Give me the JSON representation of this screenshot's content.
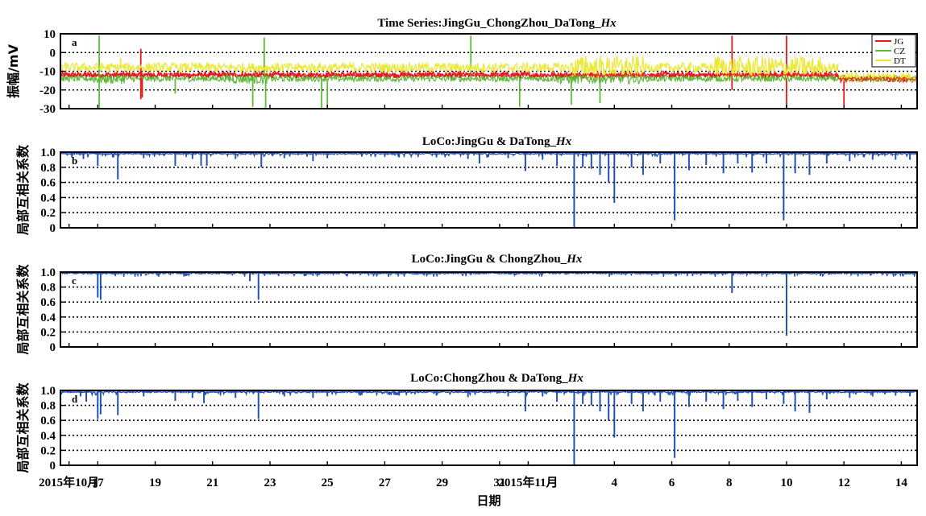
{
  "x_axis": {
    "xlabel": "日期",
    "ticks": [
      {
        "day": 16,
        "label": "2015年10月"
      },
      {
        "day": 17,
        "label": "17"
      },
      {
        "day": 19,
        "label": "19"
      },
      {
        "day": 21,
        "label": "21"
      },
      {
        "day": 23,
        "label": "23"
      },
      {
        "day": 25,
        "label": "25"
      },
      {
        "day": 27,
        "label": "27"
      },
      {
        "day": 29,
        "label": "29"
      },
      {
        "day": 31,
        "label": "31"
      },
      {
        "day": 32,
        "label": "2015年11月"
      },
      {
        "day": 35,
        "label": "4"
      },
      {
        "day": 37,
        "label": "6"
      },
      {
        "day": 39,
        "label": "8"
      },
      {
        "day": 41,
        "label": "10"
      },
      {
        "day": 43,
        "label": "12"
      },
      {
        "day": 45,
        "label": "14"
      }
    ],
    "range": [
      15.7,
      45.55
    ]
  },
  "chart_data": [
    {
      "type": "line",
      "panel_letter": "a",
      "title": "Time Series:JingGu_ChongZhou_DaTong_",
      "title_suffix": "Hx",
      "ylabel": "振幅/mV",
      "ylim": [
        -30,
        10
      ],
      "yticks": [
        10,
        0,
        -10,
        -20,
        -30
      ],
      "grid_values": [
        0,
        -10,
        -20
      ],
      "legend_placement": "top-right",
      "series": [
        {
          "name": "JG",
          "color": "#e8191e",
          "base": -12,
          "segments": [
            {
              "x": [
                15.7,
                42.8
              ],
              "y": -12
            },
            {
              "x": [
                42.8,
                45.55
              ],
              "y": -14
            }
          ],
          "spikes": [
            {
              "x": 18.5,
              "y": 2
            },
            {
              "x": 18.5,
              "y": -25
            },
            {
              "x": 18.55,
              "y": -24
            },
            {
              "x": 39.1,
              "y": 9
            },
            {
              "x": 39.1,
              "y": -20
            },
            {
              "x": 41.0,
              "y": 9
            },
            {
              "x": 41.0,
              "y": -30
            },
            {
              "x": 43.0,
              "y": -28
            }
          ]
        },
        {
          "name": "CZ",
          "color": "#5cbd3b",
          "base": -14,
          "segments": [
            {
              "x": [
                15.7,
                45.55
              ],
              "y": -14
            }
          ],
          "spikes": [
            {
              "x": 17.05,
              "y": 9
            },
            {
              "x": 17.05,
              "y": -30
            },
            {
              "x": 22.4,
              "y": -29
            },
            {
              "x": 22.8,
              "y": 8
            },
            {
              "x": 22.85,
              "y": -30
            },
            {
              "x": 24.8,
              "y": -30
            },
            {
              "x": 25.0,
              "y": -30
            },
            {
              "x": 30.0,
              "y": 9
            },
            {
              "x": 31.7,
              "y": -29
            },
            {
              "x": 33.5,
              "y": -28
            },
            {
              "x": 34.5,
              "y": -27
            },
            {
              "x": 19.7,
              "y": -22
            }
          ]
        },
        {
          "name": "DT",
          "color": "#ebe836",
          "base": -8,
          "segments": [
            {
              "x": [
                15.7,
                42.8
              ],
              "y": -8
            },
            {
              "x": [
                42.8,
                45.55
              ],
              "y": -13
            }
          ],
          "spikes": [
            {
              "x": 17.8,
              "y": -3
            },
            {
              "x": 34.0,
              "y": -2
            },
            {
              "x": 35.0,
              "y": -3
            },
            {
              "x": 38.6,
              "y": -2
            },
            {
              "x": 40.5,
              "y": -3
            },
            {
              "x": 41.6,
              "y": -3
            }
          ]
        }
      ]
    },
    {
      "type": "line",
      "panel_letter": "b",
      "title": "LoCo:JingGu & DaTong_",
      "title_suffix": "Hx",
      "ylabel": "局部互相关系数",
      "ylim": [
        0,
        1.0
      ],
      "yticks": [
        1.0,
        0.8,
        0.6,
        0.4,
        0.2,
        0
      ],
      "grid_values": [
        0.8,
        0.6,
        0.4,
        0.2
      ],
      "color": "#2350b5",
      "baseline": 0.99,
      "dips": [
        {
          "x": 16.1,
          "y": 0.93
        },
        {
          "x": 16.5,
          "y": 0.91
        },
        {
          "x": 17.0,
          "y": 0.82
        },
        {
          "x": 17.7,
          "y": 0.64
        },
        {
          "x": 18.6,
          "y": 0.92
        },
        {
          "x": 19.7,
          "y": 0.82
        },
        {
          "x": 20.3,
          "y": 0.91
        },
        {
          "x": 20.6,
          "y": 0.82
        },
        {
          "x": 20.8,
          "y": 0.82
        },
        {
          "x": 21.8,
          "y": 0.91
        },
        {
          "x": 22.7,
          "y": 0.8
        },
        {
          "x": 23.5,
          "y": 0.92
        },
        {
          "x": 24.5,
          "y": 0.88
        },
        {
          "x": 25.0,
          "y": 0.92
        },
        {
          "x": 26.2,
          "y": 0.94
        },
        {
          "x": 27.5,
          "y": 0.93
        },
        {
          "x": 28.8,
          "y": 0.93
        },
        {
          "x": 29.9,
          "y": 0.91
        },
        {
          "x": 30.3,
          "y": 0.85
        },
        {
          "x": 31.3,
          "y": 0.92
        },
        {
          "x": 31.9,
          "y": 0.75
        },
        {
          "x": 32.5,
          "y": 0.9
        },
        {
          "x": 33.0,
          "y": 0.82
        },
        {
          "x": 33.6,
          "y": 0.0
        },
        {
          "x": 33.9,
          "y": 0.8
        },
        {
          "x": 34.2,
          "y": 0.78
        },
        {
          "x": 34.5,
          "y": 0.7
        },
        {
          "x": 34.8,
          "y": 0.6
        },
        {
          "x": 35.0,
          "y": 0.33
        },
        {
          "x": 35.6,
          "y": 0.8
        },
        {
          "x": 36.0,
          "y": 0.7
        },
        {
          "x": 36.6,
          "y": 0.85
        },
        {
          "x": 37.1,
          "y": 0.1
        },
        {
          "x": 37.6,
          "y": 0.76
        },
        {
          "x": 38.2,
          "y": 0.83
        },
        {
          "x": 38.8,
          "y": 0.72
        },
        {
          "x": 39.3,
          "y": 0.85
        },
        {
          "x": 39.8,
          "y": 0.73
        },
        {
          "x": 40.3,
          "y": 0.85
        },
        {
          "x": 40.9,
          "y": 0.1
        },
        {
          "x": 41.3,
          "y": 0.72
        },
        {
          "x": 41.8,
          "y": 0.7
        },
        {
          "x": 42.4,
          "y": 0.85
        },
        {
          "x": 43.2,
          "y": 0.88
        },
        {
          "x": 44.0,
          "y": 0.9
        },
        {
          "x": 44.8,
          "y": 0.9
        },
        {
          "x": 45.3,
          "y": 0.9
        }
      ]
    },
    {
      "type": "line",
      "panel_letter": "c",
      "title": "LoCo:JingGu & ChongZhou_",
      "title_suffix": "Hx",
      "ylabel": "局部互相关系数",
      "ylim": [
        0,
        1.0
      ],
      "yticks": [
        1.0,
        0.8,
        0.6,
        0.4,
        0.2,
        0
      ],
      "grid_values": [
        0.8,
        0.6,
        0.4,
        0.2
      ],
      "color": "#2350b5",
      "baseline": 0.995,
      "dips": [
        {
          "x": 17.0,
          "y": 0.66
        },
        {
          "x": 17.1,
          "y": 0.63
        },
        {
          "x": 22.3,
          "y": 0.88
        },
        {
          "x": 22.6,
          "y": 0.63
        },
        {
          "x": 24.5,
          "y": 0.95
        },
        {
          "x": 30.0,
          "y": 0.96
        },
        {
          "x": 34.9,
          "y": 0.96
        },
        {
          "x": 39.1,
          "y": 0.72
        },
        {
          "x": 41.0,
          "y": 0.15
        },
        {
          "x": 42.5,
          "y": 0.97
        }
      ]
    },
    {
      "type": "line",
      "panel_letter": "d",
      "title": "LoCo:ChongZhou & DaTong_",
      "title_suffix": "Hx",
      "ylabel": "局部互相关系数",
      "ylim": [
        0,
        1.0
      ],
      "yticks": [
        1.0,
        0.8,
        0.6,
        0.4,
        0.2,
        0
      ],
      "grid_values": [
        0.8,
        0.6,
        0.4,
        0.2
      ],
      "color": "#2350b5",
      "baseline": 0.99,
      "dips": [
        {
          "x": 16.4,
          "y": 0.92
        },
        {
          "x": 16.6,
          "y": 0.85
        },
        {
          "x": 17.0,
          "y": 0.62
        },
        {
          "x": 17.1,
          "y": 0.68
        },
        {
          "x": 17.7,
          "y": 0.67
        },
        {
          "x": 18.6,
          "y": 0.92
        },
        {
          "x": 19.7,
          "y": 0.86
        },
        {
          "x": 20.3,
          "y": 0.9
        },
        {
          "x": 20.7,
          "y": 0.83
        },
        {
          "x": 21.8,
          "y": 0.9
        },
        {
          "x": 22.6,
          "y": 0.62
        },
        {
          "x": 23.5,
          "y": 0.92
        },
        {
          "x": 24.5,
          "y": 0.9
        },
        {
          "x": 25.0,
          "y": 0.92
        },
        {
          "x": 26.2,
          "y": 0.94
        },
        {
          "x": 27.5,
          "y": 0.93
        },
        {
          "x": 28.8,
          "y": 0.93
        },
        {
          "x": 29.9,
          "y": 0.91
        },
        {
          "x": 31.3,
          "y": 0.92
        },
        {
          "x": 31.9,
          "y": 0.72
        },
        {
          "x": 32.5,
          "y": 0.92
        },
        {
          "x": 33.0,
          "y": 0.85
        },
        {
          "x": 33.6,
          "y": 0.0
        },
        {
          "x": 33.9,
          "y": 0.82
        },
        {
          "x": 34.2,
          "y": 0.8
        },
        {
          "x": 34.5,
          "y": 0.72
        },
        {
          "x": 34.8,
          "y": 0.6
        },
        {
          "x": 35.0,
          "y": 0.37
        },
        {
          "x": 35.6,
          "y": 0.82
        },
        {
          "x": 36.0,
          "y": 0.72
        },
        {
          "x": 36.6,
          "y": 0.85
        },
        {
          "x": 37.1,
          "y": 0.1
        },
        {
          "x": 37.6,
          "y": 0.78
        },
        {
          "x": 38.2,
          "y": 0.85
        },
        {
          "x": 38.8,
          "y": 0.75
        },
        {
          "x": 39.3,
          "y": 0.86
        },
        {
          "x": 39.8,
          "y": 0.78
        },
        {
          "x": 40.3,
          "y": 0.88
        },
        {
          "x": 40.9,
          "y": 0.82
        },
        {
          "x": 41.3,
          "y": 0.72
        },
        {
          "x": 41.8,
          "y": 0.7
        },
        {
          "x": 42.4,
          "y": 0.88
        },
        {
          "x": 43.2,
          "y": 0.9
        },
        {
          "x": 44.0,
          "y": 0.92
        },
        {
          "x": 44.8,
          "y": 0.93
        },
        {
          "x": 45.3,
          "y": 0.92
        }
      ]
    }
  ]
}
